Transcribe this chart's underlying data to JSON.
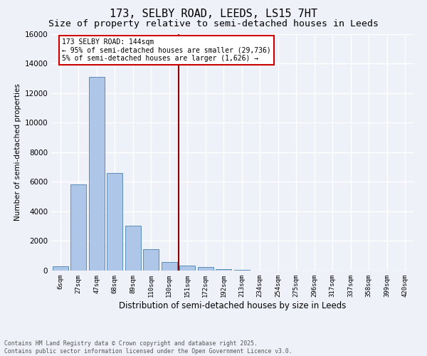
{
  "title1": "173, SELBY ROAD, LEEDS, LS15 7HT",
  "title2": "Size of property relative to semi-detached houses in Leeds",
  "xlabel": "Distribution of semi-detached houses by size in Leeds",
  "ylabel": "Number of semi-detached properties",
  "bar_values": [
    300,
    5800,
    13100,
    6600,
    3050,
    1450,
    600,
    350,
    250,
    100,
    50,
    0,
    0,
    0,
    0,
    0,
    0,
    0,
    0,
    0
  ],
  "categories": [
    "6sqm",
    "27sqm",
    "47sqm",
    "68sqm",
    "89sqm",
    "110sqm",
    "130sqm",
    "151sqm",
    "172sqm",
    "192sqm",
    "213sqm",
    "234sqm",
    "254sqm",
    "275sqm",
    "296sqm",
    "317sqm",
    "337sqm",
    "358sqm",
    "399sqm",
    "420sqm"
  ],
  "bar_color": "#aec6e8",
  "bar_edge_color": "#5b8db8",
  "vline_x_idx": 7,
  "vline_color": "#8b0000",
  "annotation_title": "173 SELBY ROAD: 144sqm",
  "annotation_line1": "← 95% of semi-detached houses are smaller (29,736)",
  "annotation_line2": "5% of semi-detached houses are larger (1,626) →",
  "annotation_box_color": "#ffffff",
  "annotation_box_edge": "#cc0000",
  "ylim": [
    0,
    16000
  ],
  "yticks": [
    0,
    2000,
    4000,
    6000,
    8000,
    10000,
    12000,
    14000,
    16000
  ],
  "footer1": "Contains HM Land Registry data © Crown copyright and database right 2025.",
  "footer2": "Contains public sector information licensed under the Open Government Licence v3.0.",
  "bg_color": "#eef1f8",
  "grid_color": "#ffffff",
  "title_fontsize": 11,
  "subtitle_fontsize": 9.5
}
